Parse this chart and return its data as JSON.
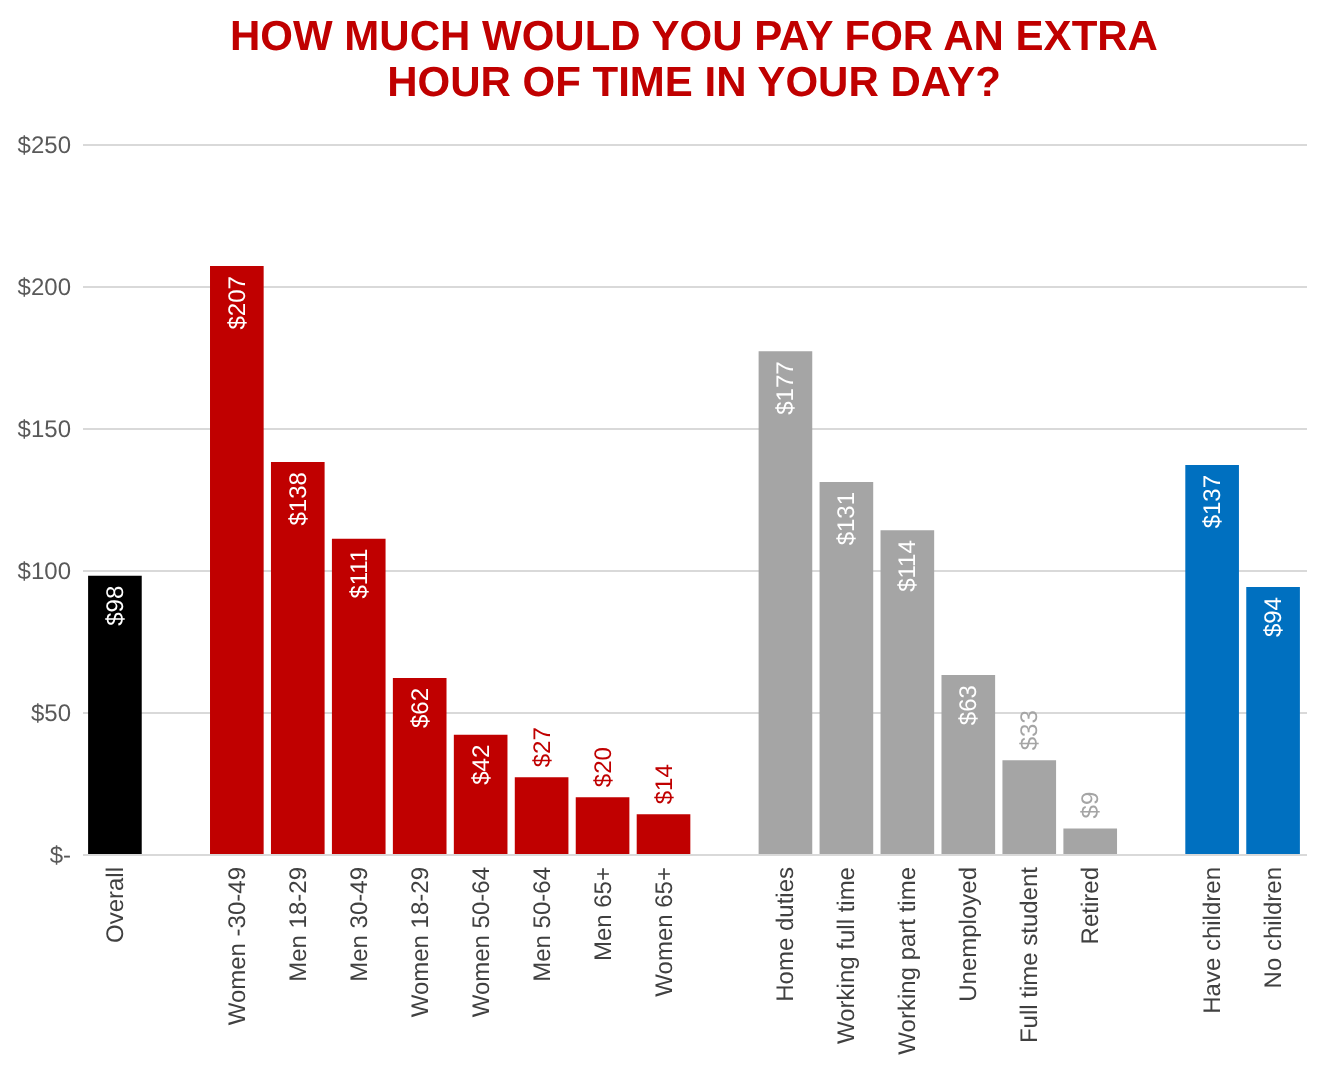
{
  "chart_data": {
    "type": "bar",
    "title": "HOW MUCH WOULD YOU PAY FOR AN EXTRA\nHOUR OF TIME IN YOUR DAY?",
    "categories": [
      "Overall",
      null,
      "Women -30-49",
      "Men 18-29",
      "Men 30-49",
      "Women 18-29",
      "Women 50-64",
      "Men 50-64",
      "Men 65+",
      "Women 65+",
      null,
      "Home duties",
      "Working full time",
      "Working part time",
      "Unemployed",
      "Full time student",
      "Retired",
      null,
      "Have children",
      "No children"
    ],
    "values": [
      98,
      null,
      207,
      138,
      111,
      62,
      42,
      27,
      20,
      14,
      null,
      177,
      131,
      114,
      63,
      33,
      9,
      null,
      137,
      94
    ],
    "value_labels": [
      "$98",
      null,
      "$207",
      "$138",
      "$111",
      "$62",
      "$42",
      "$27",
      "$20",
      "$14",
      null,
      "$177",
      "$131",
      "$114",
      "$63",
      "$33",
      "$9",
      null,
      "$137",
      "$94"
    ],
    "colors": [
      "#000000",
      null,
      "#c00000",
      "#c00000",
      "#c00000",
      "#c00000",
      "#c00000",
      "#c00000",
      "#c00000",
      "#c00000",
      null,
      "#a5a5a5",
      "#a5a5a5",
      "#a5a5a5",
      "#a5a5a5",
      "#a5a5a5",
      "#a5a5a5",
      null,
      "#0070c0",
      "#0070c0"
    ],
    "ylim": [
      0,
      250
    ],
    "yticks": [
      {
        "value": 0,
        "label": "$-"
      },
      {
        "value": 50,
        "label": "$50"
      },
      {
        "value": 100,
        "label": "$100"
      },
      {
        "value": 150,
        "label": "$150"
      },
      {
        "value": 200,
        "label": "$200"
      },
      {
        "value": 250,
        "label": "$250"
      }
    ],
    "grid": "y"
  }
}
